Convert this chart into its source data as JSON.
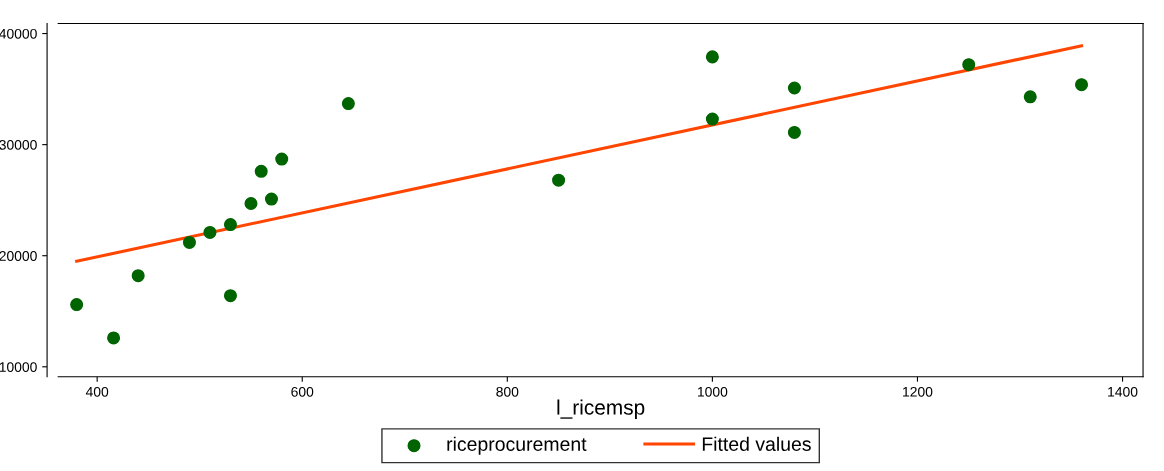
{
  "chart_data": {
    "type": "scatter",
    "xlabel": "l_ricemsp",
    "xlim": [
      362,
      1420
    ],
    "ylim": [
      9100,
      40900
    ],
    "xticks": [
      400,
      600,
      800,
      1000,
      1200,
      1400
    ],
    "yticks": [
      10000,
      20000,
      30000,
      40000
    ],
    "grid": false,
    "legend": "bottom",
    "marker": "circle",
    "series": [
      {
        "name": "riceprocurement",
        "color": "#006400",
        "x": [
          380,
          416,
          440,
          490,
          510,
          530,
          530,
          550,
          560,
          570,
          580,
          645,
          850,
          1000,
          1000,
          1080,
          1080,
          1250,
          1310,
          1360
        ],
        "values": [
          15600,
          12600,
          18200,
          21200,
          22100,
          22800,
          16400,
          24700,
          27600,
          25100,
          28700,
          33700,
          26800,
          37900,
          32300,
          35100,
          31100,
          37200,
          34300,
          35400
        ]
      },
      {
        "name": "Fitted values",
        "type": "line",
        "color": "#ff4500",
        "marker": "none",
        "x": [
          380,
          1360
        ],
        "values": [
          19500,
          38900
        ]
      }
    ]
  }
}
